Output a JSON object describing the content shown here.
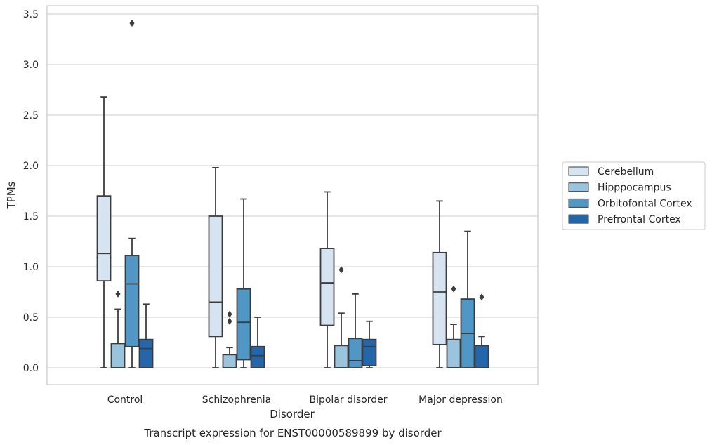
{
  "chart_data": {
    "type": "boxplot",
    "title": "",
    "caption": "Transcript expression for ENST00000589899 by disorder",
    "xlabel": "Disorder",
    "ylabel": "TPMs",
    "ylim": [
      -0.17,
      3.6
    ],
    "yticks": [
      0.0,
      0.5,
      1.0,
      1.5,
      2.0,
      2.5,
      3.0,
      3.5
    ],
    "ytick_labels": [
      "0.0",
      "0.5",
      "1.0",
      "1.5",
      "2.0",
      "2.5",
      "3.0",
      "3.5"
    ],
    "grid": "horizontal",
    "legend_position": "right",
    "categories": [
      "Control",
      "Schizophrenia",
      "Bipolar disorder",
      "Major depression"
    ],
    "series": [
      {
        "name": "Cerebellum",
        "color": "#d6e4f2",
        "boxes": [
          {
            "whisker_low": 0.0,
            "q1": 0.86,
            "median": 1.13,
            "q3": 1.7,
            "whisker_high": 2.68,
            "outliers": []
          },
          {
            "whisker_low": 0.0,
            "q1": 0.31,
            "median": 0.65,
            "q3": 1.5,
            "whisker_high": 1.98,
            "outliers": []
          },
          {
            "whisker_low": 0.0,
            "q1": 0.42,
            "median": 0.84,
            "q3": 1.18,
            "whisker_high": 1.74,
            "outliers": []
          },
          {
            "whisker_low": 0.0,
            "q1": 0.23,
            "median": 0.75,
            "q3": 1.14,
            "whisker_high": 1.65,
            "outliers": []
          }
        ]
      },
      {
        "name": "Hipppocampus",
        "color": "#9ac3de",
        "boxes": [
          {
            "whisker_low": 0.0,
            "q1": 0.0,
            "median": 0.0,
            "q3": 0.24,
            "whisker_high": 0.58,
            "outliers": [
              0.73
            ]
          },
          {
            "whisker_low": 0.0,
            "q1": 0.0,
            "median": 0.0,
            "q3": 0.13,
            "whisker_high": 0.2,
            "outliers": [
              0.46,
              0.53
            ]
          },
          {
            "whisker_low": 0.0,
            "q1": 0.0,
            "median": 0.0,
            "q3": 0.22,
            "whisker_high": 0.54,
            "outliers": [
              0.97
            ]
          },
          {
            "whisker_low": 0.0,
            "q1": 0.0,
            "median": 0.0,
            "q3": 0.28,
            "whisker_high": 0.43,
            "outliers": [
              0.78
            ]
          }
        ]
      },
      {
        "name": "Orbitofontal Cortex",
        "color": "#5197c6",
        "boxes": [
          {
            "whisker_low": 0.0,
            "q1": 0.21,
            "median": 0.83,
            "q3": 1.11,
            "whisker_high": 1.28,
            "outliers": [
              3.41
            ]
          },
          {
            "whisker_low": 0.0,
            "q1": 0.08,
            "median": 0.45,
            "q3": 0.78,
            "whisker_high": 1.67,
            "outliers": []
          },
          {
            "whisker_low": 0.0,
            "q1": 0.0,
            "median": 0.07,
            "q3": 0.29,
            "whisker_high": 0.73,
            "outliers": []
          },
          {
            "whisker_low": 0.0,
            "q1": 0.0,
            "median": 0.34,
            "q3": 0.68,
            "whisker_high": 1.35,
            "outliers": []
          }
        ]
      },
      {
        "name": "Prefrontal Cortex",
        "color": "#2366a9",
        "boxes": [
          {
            "whisker_low": 0.0,
            "q1": 0.0,
            "median": 0.19,
            "q3": 0.28,
            "whisker_high": 0.63,
            "outliers": []
          },
          {
            "whisker_low": 0.0,
            "q1": 0.0,
            "median": 0.12,
            "q3": 0.21,
            "whisker_high": 0.5,
            "outliers": []
          },
          {
            "whisker_low": 0.0,
            "q1": 0.02,
            "median": 0.21,
            "q3": 0.28,
            "whisker_high": 0.46,
            "outliers": []
          },
          {
            "whisker_low": 0.0,
            "q1": 0.0,
            "median": 0.0,
            "q3": 0.22,
            "whisker_high": 0.31,
            "outliers": [
              0.7
            ]
          }
        ]
      }
    ]
  }
}
